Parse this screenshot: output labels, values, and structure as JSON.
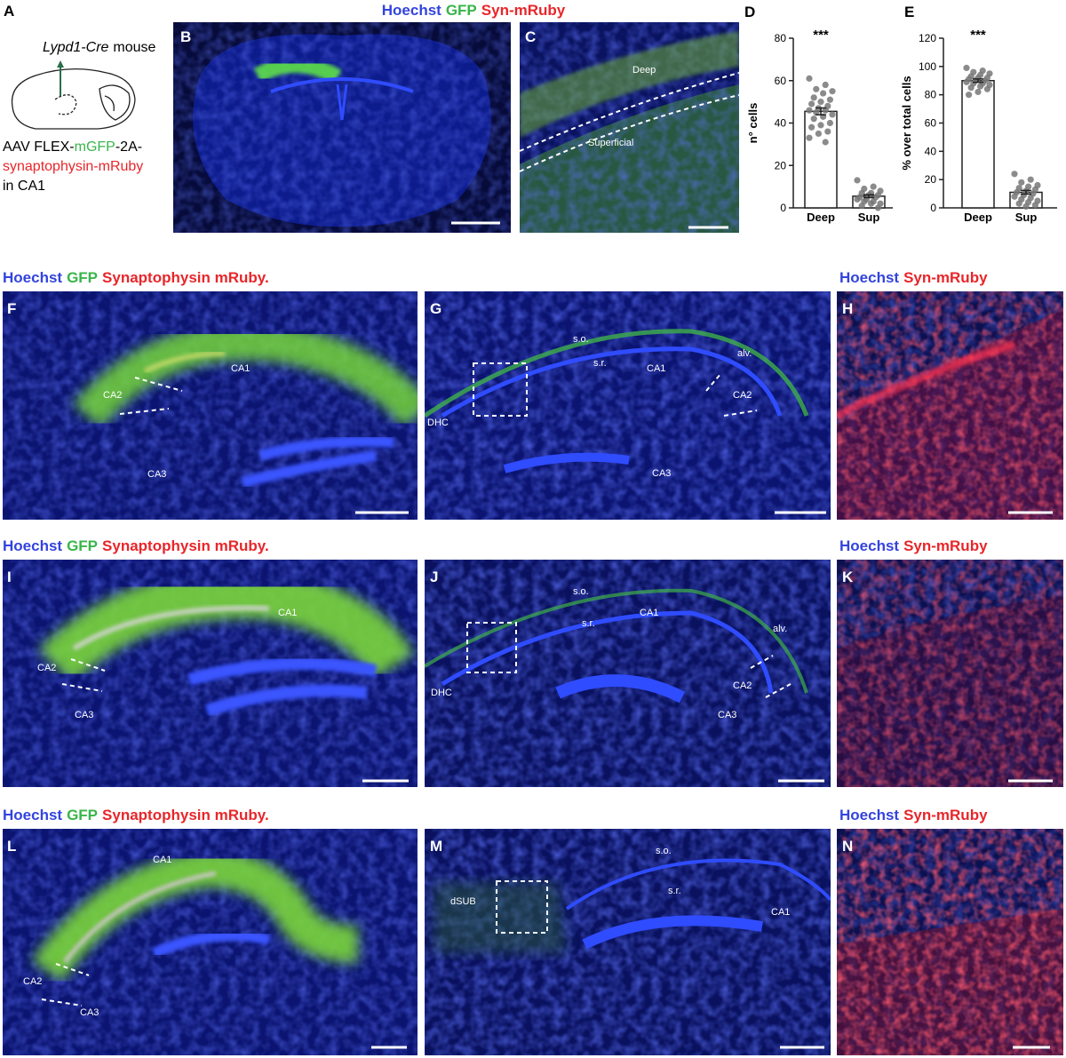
{
  "figure": {
    "top_header": [
      "Hoechst",
      "GFP",
      "Syn-mRuby"
    ],
    "panel_a": {
      "label": "A",
      "mouse": [
        "Lypd1-Cre",
        "mouse"
      ],
      "construct": [
        "AAV FLEX-",
        "mGFP",
        "-2A-",
        "synaptophysin-mRuby",
        "in CA1"
      ]
    },
    "row_headers": [
      {
        "left": [
          "Hoechst",
          "GFP",
          "Synaptophysin mRuby."
        ],
        "right": [
          "Hoechst",
          "Syn-mRuby"
        ]
      },
      {
        "left": [
          "Hoechst",
          "GFP",
          "Synaptophysin mRuby."
        ],
        "right": [
          "Hoechst",
          "Syn-mRuby"
        ]
      },
      {
        "left": [
          "Hoechst",
          "GFP",
          "Synaptophysin mRuby."
        ],
        "right": [
          "Hoechst",
          "Syn-mRuby"
        ]
      }
    ],
    "panels": [
      {
        "label": "B",
        "annotations": []
      },
      {
        "label": "C",
        "annotations": [
          "Deep",
          "Superficial"
        ]
      },
      {
        "label": "F",
        "annotations": [
          "CA2",
          "CA1",
          "CA3"
        ]
      },
      {
        "label": "G",
        "annotations": [
          "s.o.",
          "s.r.",
          "CA1",
          "alv.",
          "CA2",
          "DHC",
          "CA3"
        ]
      },
      {
        "label": "H",
        "annotations": []
      },
      {
        "label": "I",
        "annotations": [
          "CA1",
          "CA2",
          "CA3"
        ]
      },
      {
        "label": "J",
        "annotations": [
          "s.o.",
          "CA1",
          "s.r.",
          "alv.",
          "DHC",
          "CA2",
          "CA3"
        ]
      },
      {
        "label": "K",
        "annotations": []
      },
      {
        "label": "L",
        "annotations": [
          "CA1",
          "CA2",
          "CA3"
        ]
      },
      {
        "label": "M",
        "annotations": [
          "s.o.",
          "dSUB",
          "s.r.",
          "CA1"
        ]
      },
      {
        "label": "N",
        "annotations": []
      }
    ]
  },
  "chart_data": [
    {
      "type": "bar",
      "panel_label": "D",
      "ylabel": "n° cells",
      "annotation": "***",
      "categories": [
        "Deep",
        "Sup"
      ],
      "values": [
        45.5,
        5.5
      ],
      "errors": [
        1.6,
        0.7
      ],
      "color": "#ffffff",
      "points": [
        [
          61,
          58,
          56,
          55,
          54,
          52,
          51,
          50,
          49,
          48,
          47,
          46,
          46,
          45,
          44,
          43,
          42,
          40,
          39,
          38,
          36,
          35,
          33,
          31
        ],
        [
          13,
          10,
          9,
          8,
          7,
          7,
          6,
          6,
          5,
          5,
          4,
          4,
          3,
          3,
          2,
          2,
          1,
          0
        ]
      ],
      "point_color": "#777777",
      "ylim": [
        0,
        80
      ],
      "yticks": [
        0,
        20,
        40,
        60,
        80
      ]
    },
    {
      "type": "bar",
      "panel_label": "E",
      "ylabel": "% over total cells",
      "annotation": "***",
      "categories": [
        "Deep",
        "Sup"
      ],
      "values": [
        90,
        11
      ],
      "errors": [
        1.2,
        1.3
      ],
      "color": "#ffffff",
      "points": [
        [
          99,
          97,
          96,
          95,
          94,
          93,
          92,
          92,
          91,
          90,
          90,
          89,
          88,
          88,
          87,
          86,
          85,
          84,
          82,
          80
        ],
        [
          24,
          20,
          18,
          16,
          15,
          14,
          13,
          12,
          11,
          10,
          9,
          8,
          7,
          6,
          5,
          4,
          3,
          2,
          1
        ]
      ],
      "point_color": "#777777",
      "ylim": [
        0,
        120
      ],
      "yticks": [
        0,
        20,
        40,
        60,
        80,
        100,
        120
      ]
    }
  ]
}
